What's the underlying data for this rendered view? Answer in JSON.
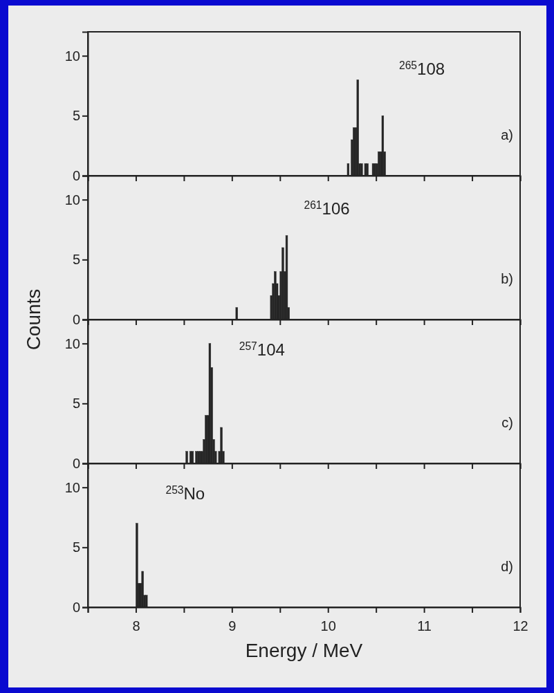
{
  "chart_data": [
    {
      "type": "histogram",
      "annotations": [
        "$^{265}$108",
        "a)"
      ],
      "color": "#262626",
      "bins": [
        10.2,
        10.22,
        10.24,
        10.26,
        10.28,
        10.3,
        10.32,
        10.34,
        10.36,
        10.38,
        10.4,
        10.42,
        10.44,
        10.46,
        10.48,
        10.5,
        10.52,
        10.54,
        10.56,
        10.58,
        10.6
      ],
      "values": [
        1,
        0,
        3,
        4,
        4,
        8,
        1,
        1,
        0,
        1,
        1,
        0,
        0,
        1,
        1,
        1,
        2,
        2,
        5,
        2
      ],
      "xlim": [
        7.5,
        12
      ],
      "ylim": [
        0,
        12
      ],
      "xticks": [
        {
          "value": 7.5,
          "label": null
        },
        8,
        {
          "value": 8.5,
          "label": null
        },
        9,
        {
          "value": 9.5,
          "label": null
        },
        10,
        {
          "value": 10.5,
          "label": null
        },
        11,
        {
          "value": 11.5,
          "label": null
        },
        12
      ],
      "yticks": [
        0,
        5,
        10
      ],
      "tick_labels": "y",
      "grid": false
    },
    {
      "type": "histogram",
      "annotations": [
        "$^{261}$106",
        "b)"
      ],
      "ylabel": "Counts",
      "color": "#262626",
      "bins": [
        9.04,
        9.06,
        9.08,
        9.1,
        9.12,
        9.14,
        9.16,
        9.18,
        9.2,
        9.22,
        9.24,
        9.26,
        9.28,
        9.3,
        9.32,
        9.34,
        9.36,
        9.38,
        9.4,
        9.42,
        9.44,
        9.46,
        9.48,
        9.5,
        9.52,
        9.54,
        9.56,
        9.58,
        9.6
      ],
      "values": [
        1,
        0,
        0,
        0,
        0,
        0,
        0,
        0,
        0,
        0,
        0,
        0,
        0,
        0,
        0,
        0,
        0,
        0,
        2,
        3,
        4,
        3,
        2,
        4,
        6,
        4,
        7,
        1
      ],
      "xlim": [
        7.5,
        12
      ],
      "ylim": [
        0,
        12
      ],
      "xticks": [
        {
          "value": 7.5,
          "label": null
        },
        8,
        {
          "value": 8.5,
          "label": null
        },
        9,
        {
          "value": 9.5,
          "label": null
        },
        10,
        {
          "value": 10.5,
          "label": null
        },
        11,
        {
          "value": 11.5,
          "label": null
        },
        12
      ],
      "yticks": [
        0,
        5,
        10
      ],
      "tick_labels": "y",
      "grid": false
    },
    {
      "type": "histogram",
      "annotations": [
        "$^{257}$104",
        "c)"
      ],
      "color": "#262626",
      "bins": [
        8.52,
        8.54,
        8.56,
        8.58,
        8.6,
        8.62,
        8.64,
        8.66,
        8.68,
        8.7,
        8.72,
        8.74,
        8.76,
        8.78,
        8.8,
        8.82,
        8.84,
        8.86,
        8.88,
        8.9,
        8.92
      ],
      "values": [
        1,
        0,
        1,
        1,
        0,
        1,
        1,
        1,
        1,
        2,
        4,
        4,
        10,
        8,
        2,
        1,
        0,
        1,
        3,
        1
      ],
      "xlim": [
        7.5,
        12
      ],
      "ylim": [
        0,
        12
      ],
      "xticks": [
        {
          "value": 7.5,
          "label": null
        },
        8,
        {
          "value": 8.5,
          "label": null
        },
        9,
        {
          "value": 9.5,
          "label": null
        },
        10,
        {
          "value": 10.5,
          "label": null
        },
        11,
        {
          "value": 11.5,
          "label": null
        },
        12
      ],
      "yticks": [
        0,
        5,
        10
      ],
      "tick_labels": "y",
      "grid": false
    },
    {
      "type": "histogram",
      "annotations": [
        "$^{253}$No",
        "d)"
      ],
      "xlabel": "Energy / MeV",
      "color": "#262626",
      "bins": [
        8.0,
        8.02,
        8.04,
        8.06,
        8.08,
        8.1,
        8.12
      ],
      "values": [
        7,
        2,
        2,
        3,
        1,
        1
      ],
      "xlim": [
        7.5,
        12
      ],
      "ylim": [
        0,
        12
      ],
      "xticks": [
        {
          "value": 7.5,
          "label": null
        },
        8,
        {
          "value": 8.5,
          "label": null
        },
        9,
        {
          "value": 9.5,
          "label": null
        },
        10,
        {
          "value": 10.5,
          "label": null
        },
        11,
        {
          "value": 11.5,
          "label": null
        },
        12
      ],
      "yticks": [
        0,
        5,
        10
      ],
      "grid": false
    }
  ]
}
